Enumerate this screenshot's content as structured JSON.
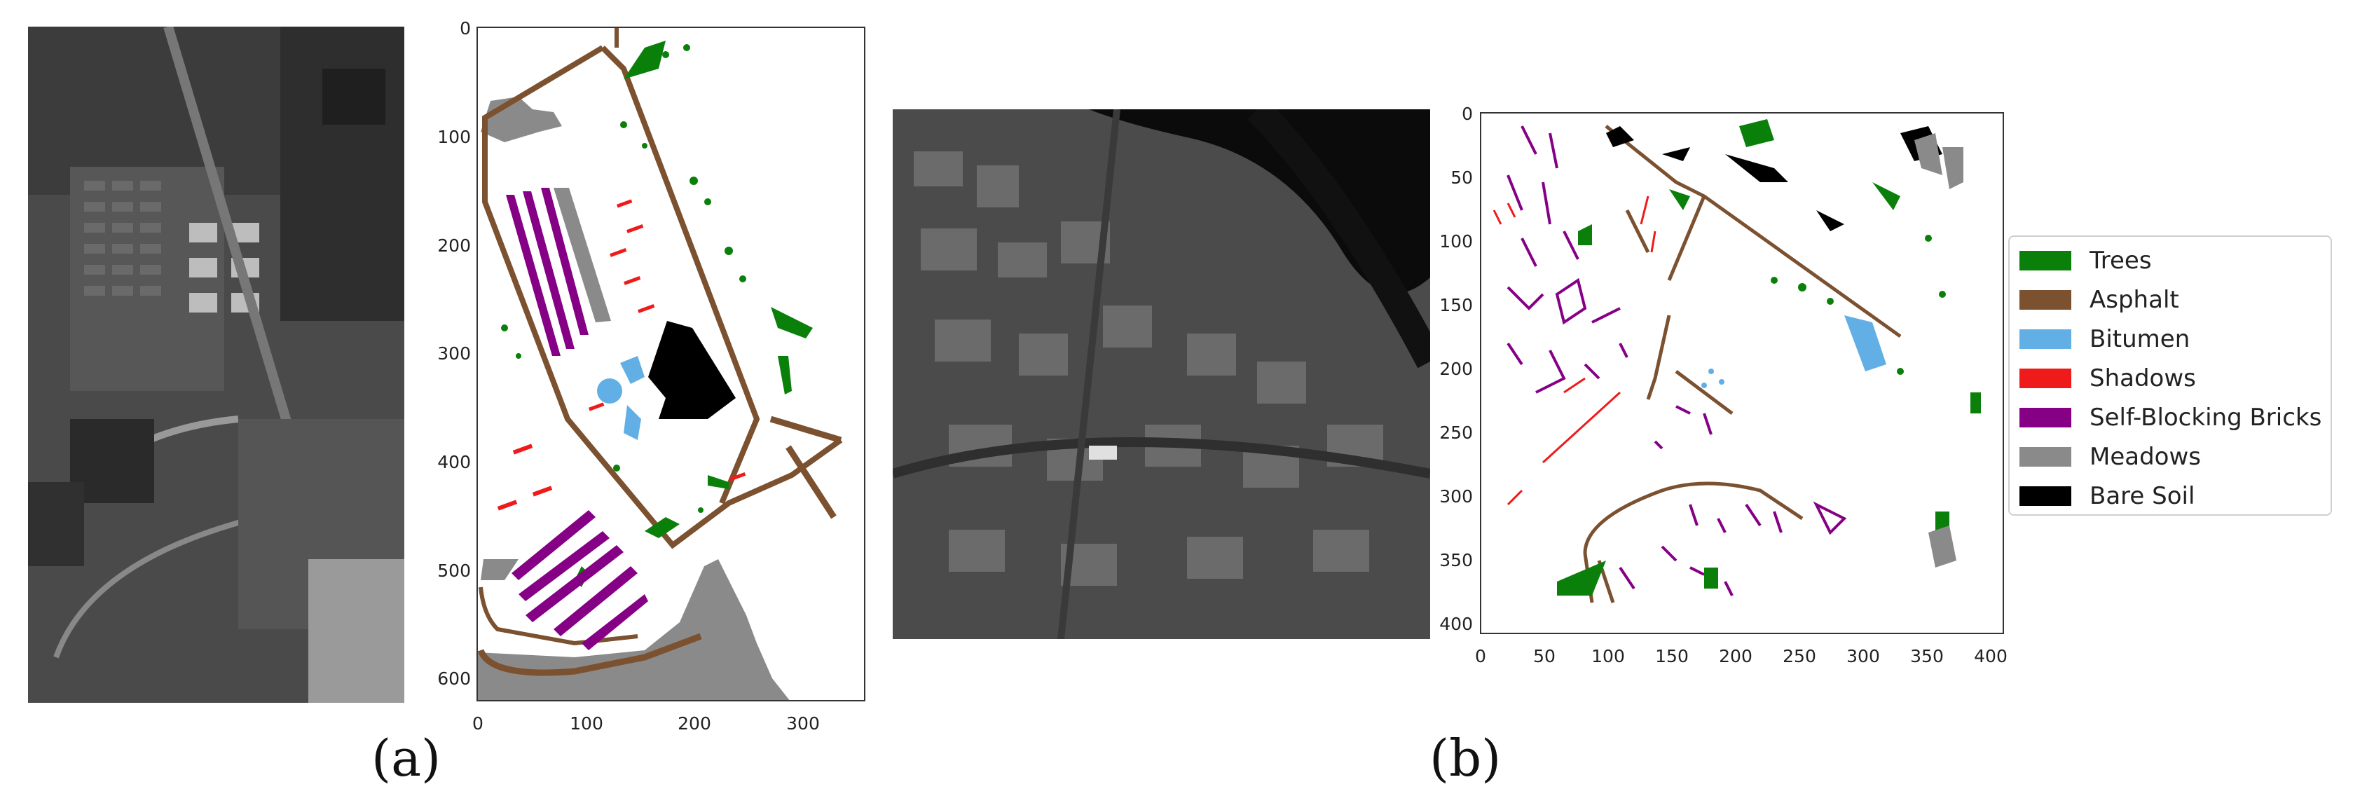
{
  "figure": {
    "panel_a": {
      "caption": "(a)",
      "image_label": "grayscale-aerial-image",
      "map_label": "ground-truth-class-map",
      "x_ticks": [
        "0",
        "100",
        "200",
        "300"
      ],
      "y_ticks": [
        "0",
        "100",
        "200",
        "300",
        "400",
        "500",
        "600"
      ]
    },
    "panel_b": {
      "caption": "(b)",
      "image_label": "grayscale-aerial-image",
      "map_label": "ground-truth-class-map",
      "x_ticks": [
        "0",
        "50",
        "100",
        "150",
        "200",
        "250",
        "300",
        "350",
        "400"
      ],
      "y_ticks": [
        "0",
        "50",
        "100",
        "150",
        "200",
        "250",
        "300",
        "350",
        "400"
      ]
    },
    "legend": [
      {
        "label": "Trees",
        "color": "#0a7f0a"
      },
      {
        "label": "Asphalt",
        "color": "#7b5130"
      },
      {
        "label": "Bitumen",
        "color": "#62afe6"
      },
      {
        "label": "Shadows",
        "color": "#ef1a1a"
      },
      {
        "label": "Self-Blocking Bricks",
        "color": "#850085"
      },
      {
        "label": "Meadows",
        "color": "#8a8a8a"
      },
      {
        "label": "Bare Soil",
        "color": "#000000"
      }
    ]
  }
}
